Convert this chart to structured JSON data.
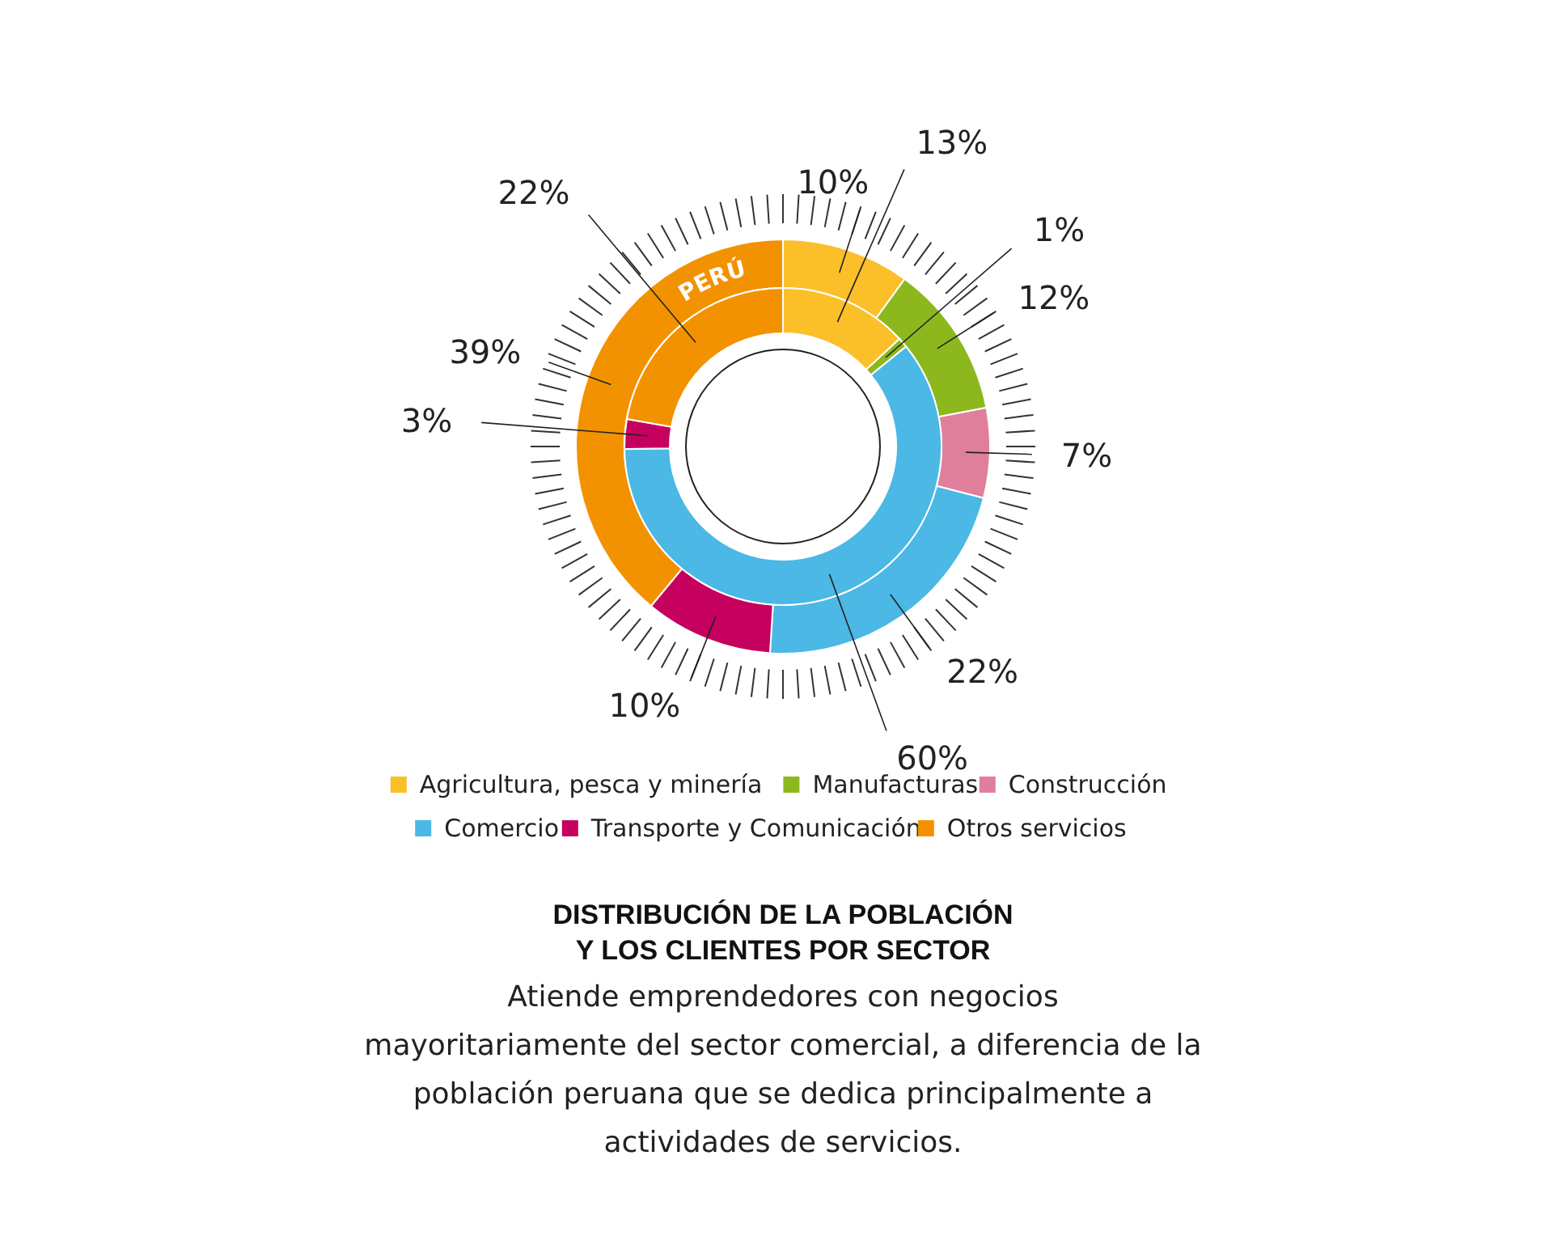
{
  "chart_data": {
    "type": "donut",
    "title": "DISTRIBUCIÓN DE LA POBLACIÓN\nY LOS CLIENTES POR SECTOR",
    "subtitle": "Atiende emprendedores con negocios\nmayoritariamente del sector comercial, a diferencia de la\npoblación peruana que se dedica principalmente a\nactividades de servicios.",
    "categories": [
      "Agricultura, pesca y minería",
      "Manufacturas",
      "Construcción",
      "Comercio",
      "Transporte y Comunicación",
      "Otros servicios"
    ],
    "colors": [
      "#fbbf2a",
      "#8cb81d",
      "#e07f9c",
      "#4bb8e5",
      "#c6005e",
      "#f39200"
    ],
    "series": [
      {
        "name": "PERÚ",
        "values": [
          10,
          12,
          7,
          22,
          10,
          39
        ],
        "value_labels": [
          "10%",
          "12%",
          "7%",
          "22%",
          "10%",
          "39%"
        ]
      },
      {
        "values": [
          13,
          1,
          0,
          60,
          3,
          22
        ],
        "value_labels": [
          "13%",
          "1%",
          null,
          "60%",
          "3%",
          "22%"
        ]
      }
    ],
    "data_labels": true,
    "legend": "bottom"
  }
}
